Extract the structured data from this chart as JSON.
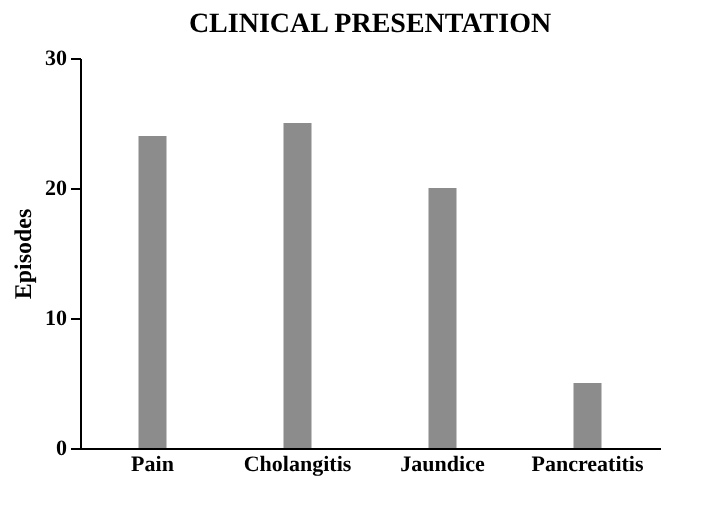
{
  "chart_data": {
    "type": "bar",
    "title": "CLINICAL PRESENTATION",
    "ylabel": "Episodes",
    "categories": [
      "Pain",
      "Cholangitis",
      "Jaundice",
      "Pancreatitis"
    ],
    "values": [
      24,
      25,
      20,
      5
    ],
    "color": "#8c8c8c",
    "ylim": [
      0,
      30
    ],
    "yticks": [
      0,
      10,
      20,
      30
    ],
    "grid": false
  }
}
